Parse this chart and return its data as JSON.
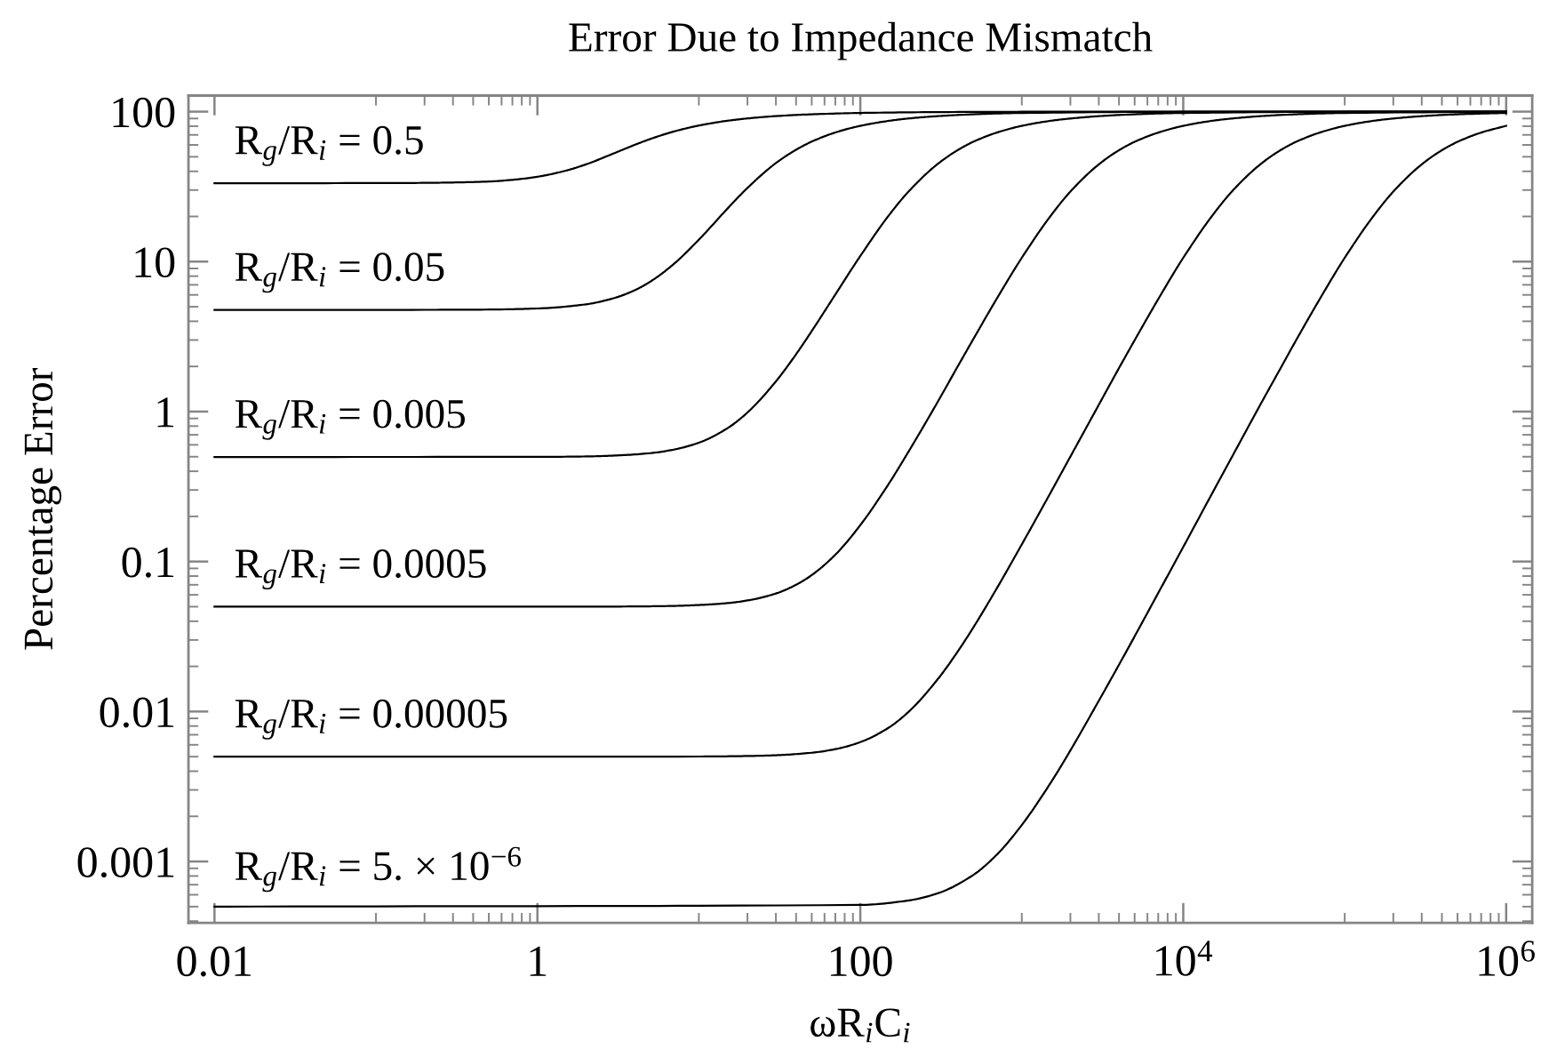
{
  "chart_data": {
    "type": "line",
    "title": "Error Due to Impedance Mismatch",
    "xlabel": "ωR$_{i}$C$_{i}$",
    "ylabel": "Percentage Error",
    "log": "xy",
    "xlim": [
      0.0069,
      1450000
    ],
    "ylim": [
      0.00039,
      128
    ],
    "xticks": [
      0.01,
      1,
      100,
      {
        "value": 10000,
        "label": "10$^{4}$"
      },
      {
        "value": 1000000,
        "label": "10$^{6}$"
      }
    ],
    "yticks": [
      0.001,
      0.01,
      0.1,
      1,
      10,
      100
    ],
    "series": [
      {
        "name": "R$_{g}$/R$_{i}$ = 0.5",
        "color": "#000000",
        "x": [
          0.01,
          0.1,
          0.2,
          0.3,
          0.5,
          0.7,
          1,
          1.5,
          2,
          3,
          4,
          5,
          7,
          10,
          15,
          20,
          30,
          50,
          100,
          300,
          1000,
          10000,
          1000000
        ],
        "values": [
          33.3,
          33.4,
          33.5,
          33.7,
          34.2,
          35.1,
          36.8,
          40.4,
          44.5,
          52.9,
          60.0,
          65.7,
          73.7,
          80.8,
          86.9,
          90.1,
          93.4,
          96.0,
          98.0,
          99.3,
          99.8,
          100,
          100
        ]
      },
      {
        "name": "R$_{g}$/R$_{i}$ = 0.05",
        "color": "#000000",
        "x": [
          0.01,
          0.2,
          0.5,
          1,
          2,
          3,
          4,
          5,
          7,
          10,
          15,
          20,
          30,
          40,
          50,
          70,
          100,
          150,
          200,
          300,
          500,
          1000,
          10000,
          1000000
        ],
        "values": [
          4.76,
          4.77,
          4.79,
          4.87,
          5.19,
          5.72,
          6.44,
          7.35,
          9.65,
          14.0,
          22.5,
          31.0,
          45.4,
          55.7,
          63.1,
          72.6,
          80.4,
          86.8,
          90.1,
          93.3,
          96.0,
          98.0,
          99.8,
          100
        ]
      },
      {
        "name": "R$_{g}$/R$_{i}$ = 0.005",
        "color": "#000000",
        "x": [
          0.01,
          1,
          2,
          3,
          5,
          7,
          10,
          15,
          20,
          30,
          40,
          50,
          70,
          100,
          150,
          200,
          300,
          400,
          500,
          700,
          1000,
          1500,
          2000,
          3000,
          5000,
          10000,
          100000,
          1000000
        ],
        "values": [
          0.498,
          0.499,
          0.502,
          0.509,
          0.528,
          0.558,
          0.62,
          0.773,
          0.986,
          1.59,
          2.41,
          3.44,
          6.03,
          10.9,
          20.3,
          29.5,
          44.6,
          55.3,
          62.9,
          72.5,
          80.4,
          86.8,
          90.0,
          93.3,
          96.0,
          98.0,
          99.8,
          100
        ]
      },
      {
        "name": "R$_{g}$/R$_{i}$ = 0.0005",
        "color": "#000000",
        "x": [
          0.01,
          1,
          3,
          5,
          7,
          10,
          15,
          20,
          30,
          40,
          50,
          70,
          100,
          150,
          200,
          300,
          400,
          500,
          700,
          1000,
          1500,
          2000,
          3000,
          4000,
          5000,
          7000,
          10000,
          15000,
          20000,
          30000,
          50000,
          100000,
          1000000
        ],
        "values": [
          0.05,
          0.05,
          0.0501,
          0.0503,
          0.0506,
          0.0513,
          0.0528,
          0.055,
          0.0612,
          0.07,
          0.0812,
          0.111,
          0.175,
          0.33,
          0.546,
          1.15,
          1.99,
          3.03,
          5.66,
          10.6,
          20.0,
          29.3,
          44.5,
          55.3,
          62.9,
          72.5,
          80.4,
          86.8,
          90.0,
          93.3,
          96.0,
          98.0,
          99.8
        ]
      },
      {
        "name": "R$_{g}$/R$_{i}$ = 0.00005",
        "color": "#000000",
        "x": [
          0.01,
          10,
          20,
          30,
          50,
          70,
          100,
          150,
          200,
          300,
          400,
          500,
          700,
          1000,
          1500,
          2000,
          3000,
          4000,
          5000,
          7000,
          10000,
          15000,
          20000,
          30000,
          40000,
          50000,
          70000,
          100000,
          150000,
          200000,
          300000,
          500000,
          1000000
        ],
        "values": [
          0.005,
          0.00501,
          0.00505,
          0.00511,
          0.00531,
          0.00561,
          0.00625,
          0.00781,
          0.01,
          0.0163,
          0.025,
          0.0362,
          0.0662,
          0.13,
          0.285,
          0.501,
          1.11,
          1.95,
          2.99,
          5.62,
          10.6,
          20.0,
          29.3,
          44.5,
          55.3,
          62.9,
          72.5,
          80.4,
          86.8,
          90.0,
          93.3,
          96.0,
          98.0
        ]
      },
      {
        "name": "R$_{g}$/R$_{i}$ = 5. × 10$^{−6}$",
        "color": "#000000",
        "x": [
          0.01,
          100,
          200,
          300,
          500,
          700,
          1000,
          1500,
          2000,
          3000,
          4000,
          5000,
          7000,
          10000,
          15000,
          20000,
          30000,
          40000,
          50000,
          70000,
          100000,
          150000,
          200000,
          300000,
          400000,
          500000,
          700000,
          1000000
        ],
        "values": [
          0.0005,
          0.000513,
          0.00055,
          0.000612,
          0.000812,
          0.00111,
          0.00175,
          0.00331,
          0.0055,
          0.0118,
          0.0205,
          0.0317,
          0.0617,
          0.125,
          0.281,
          0.497,
          1.11,
          1.94,
          2.99,
          5.62,
          10.6,
          20.0,
          29.3,
          44.5,
          55.3,
          62.9,
          72.5,
          80.4
        ]
      }
    ]
  }
}
